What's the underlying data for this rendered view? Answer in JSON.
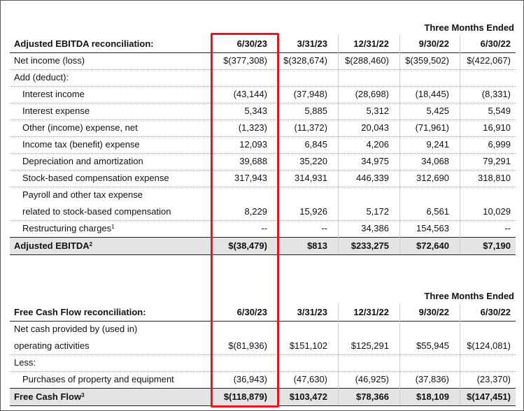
{
  "ebitda": {
    "period_label": "Three Months Ended",
    "header": {
      "label": "Adjusted EBITDA reconciliation:",
      "cols": [
        "6/30/23",
        "3/31/23",
        "12/31/22",
        "9/30/22",
        "6/30/22"
      ]
    },
    "rows": [
      {
        "label": "Net income (loss)",
        "values": [
          "$(377,308)",
          "$(328,674)",
          "$(288,460)",
          "$(359,502)",
          "$(422,067)"
        ]
      },
      {
        "label": "Add (deduct):",
        "values": []
      },
      {
        "label": "Interest income",
        "values": [
          "(43,144)",
          "(37,948)",
          "(28,698)",
          "(18,445)",
          "(8,331)"
        ]
      },
      {
        "label": "Interest expense",
        "values": [
          "5,343",
          "5,885",
          "5,312",
          "5,425",
          "5,549"
        ]
      },
      {
        "label": "Other (income) expense, net",
        "values": [
          "(1,323)",
          "(11,372)",
          "20,043",
          "(71,961)",
          "16,910"
        ]
      },
      {
        "label": "Income tax (benefit) expense",
        "values": [
          "12,093",
          "6,845",
          "4,206",
          "9,241",
          "6,999"
        ]
      },
      {
        "label": "Depreciation and amortization",
        "values": [
          "39,688",
          "35,220",
          "34,975",
          "34,068",
          "79,291"
        ]
      },
      {
        "label": "Stock-based compensation expense",
        "values": [
          "317,943",
          "314,931",
          "446,339",
          "312,690",
          "318,810"
        ]
      },
      {
        "label": "Payroll and other tax expense",
        "values": []
      },
      {
        "label": "related to stock-based compensation",
        "values": [
          "8,229",
          "15,926",
          "5,172",
          "6,561",
          "10,029"
        ]
      },
      {
        "label": "Restructuring charges",
        "footnote": "1",
        "values": [
          "--",
          "--",
          "34,386",
          "154,563",
          "--"
        ]
      }
    ],
    "total": {
      "label": "Adjusted EBITDA",
      "footnote": "2",
      "values": [
        "$(38,479)",
        "$813",
        "$233,275",
        "$72,640",
        "$7,190"
      ]
    }
  },
  "fcf": {
    "period_label": "Three Months Ended",
    "header": {
      "label": "Free Cash Flow reconciliation:",
      "cols": [
        "6/30/23",
        "3/31/23",
        "12/31/22",
        "9/30/22",
        "6/30/22"
      ]
    },
    "rows": [
      {
        "label": "Net cash provided by (used in)",
        "values": []
      },
      {
        "label": "operating activities",
        "values": [
          "$(81,936)",
          "$151,102",
          "$125,291",
          "$55,945",
          "$(124,081)"
        ]
      },
      {
        "label": "Less:",
        "values": []
      },
      {
        "label": "Purchases of property and equipment",
        "values": [
          "(36,943)",
          "(47,630)",
          "(46,925)",
          "(37,836)",
          "(23,370)"
        ]
      }
    ],
    "total": {
      "label": "Free Cash Flow",
      "footnote": "3",
      "values": [
        "$(118,879)",
        "$103,472",
        "$78,366",
        "$18,109",
        "$(147,451)"
      ]
    }
  },
  "highlight_color": "#e8141e"
}
